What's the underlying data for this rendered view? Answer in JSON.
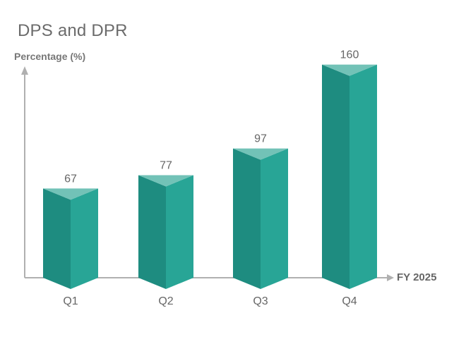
{
  "colors": {
    "bar_left": "#1e8c80",
    "bar_right": "#28a596",
    "bar_top": "#72c2b7",
    "axis": "#b0b0b0",
    "title": "#6b6b6b",
    "tick_label": "#666666",
    "value_label": "#666666"
  },
  "chart_data": {
    "type": "bar",
    "title": "DPS and DPR",
    "ylabel": "Percentage (%)",
    "xlabel": "FY 2025",
    "categories": [
      "Q1",
      "Q2",
      "Q3",
      "Q4"
    ],
    "values": [
      67,
      77,
      97,
      160
    ],
    "ylim": [
      0,
      180
    ],
    "grid": false,
    "legend": "none"
  }
}
